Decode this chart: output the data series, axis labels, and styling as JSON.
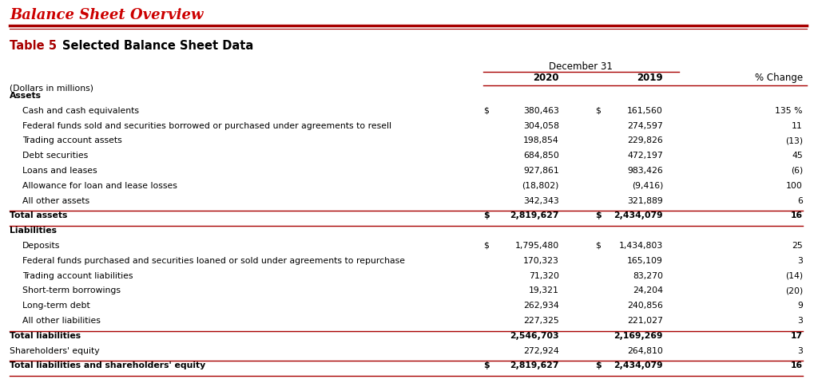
{
  "main_title": "Balance Sheet Overview",
  "table_label": "Table 5",
  "table_title": "Selected Balance Sheet Data",
  "header_group": "December 31",
  "col_headers": [
    "2020",
    "2019",
    "% Change"
  ],
  "dollar_note": "(Dollars in millions)",
  "rows": [
    {
      "label": "Assets",
      "val_2020": "",
      "val_2019": "",
      "pct": "",
      "bold": true,
      "indent": 0,
      "section_header": true,
      "dollar_2020": false,
      "dollar_2019": false,
      "top_border": false,
      "bottom_border": false,
      "double_bottom": false
    },
    {
      "label": "Cash and cash equivalents",
      "val_2020": "380,463",
      "val_2019": "161,560",
      "pct": "135 %",
      "bold": false,
      "indent": 1,
      "section_header": false,
      "dollar_2020": true,
      "dollar_2019": true,
      "top_border": false,
      "bottom_border": false,
      "double_bottom": false
    },
    {
      "label": "Federal funds sold and securities borrowed or purchased under agreements to resell",
      "val_2020": "304,058",
      "val_2019": "274,597",
      "pct": "11",
      "bold": false,
      "indent": 1,
      "section_header": false,
      "dollar_2020": false,
      "dollar_2019": false,
      "top_border": false,
      "bottom_border": false,
      "double_bottom": false
    },
    {
      "label": "Trading account assets",
      "val_2020": "198,854",
      "val_2019": "229,826",
      "pct": "(13)",
      "bold": false,
      "indent": 1,
      "section_header": false,
      "dollar_2020": false,
      "dollar_2019": false,
      "top_border": false,
      "bottom_border": false,
      "double_bottom": false
    },
    {
      "label": "Debt securities",
      "val_2020": "684,850",
      "val_2019": "472,197",
      "pct": "45",
      "bold": false,
      "indent": 1,
      "section_header": false,
      "dollar_2020": false,
      "dollar_2019": false,
      "top_border": false,
      "bottom_border": false,
      "double_bottom": false
    },
    {
      "label": "Loans and leases",
      "val_2020": "927,861",
      "val_2019": "983,426",
      "pct": "(6)",
      "bold": false,
      "indent": 1,
      "section_header": false,
      "dollar_2020": false,
      "dollar_2019": false,
      "top_border": false,
      "bottom_border": false,
      "double_bottom": false
    },
    {
      "label": "Allowance for loan and lease losses",
      "val_2020": "(18,802)",
      "val_2019": "(9,416)",
      "pct": "100",
      "bold": false,
      "indent": 1,
      "section_header": false,
      "dollar_2020": false,
      "dollar_2019": false,
      "top_border": false,
      "bottom_border": false,
      "double_bottom": false
    },
    {
      "label": "All other assets",
      "val_2020": "342,343",
      "val_2019": "321,889",
      "pct": "6",
      "bold": false,
      "indent": 1,
      "section_header": false,
      "dollar_2020": false,
      "dollar_2019": false,
      "top_border": false,
      "bottom_border": false,
      "double_bottom": false
    },
    {
      "label": "Total assets",
      "val_2020": "2,819,627",
      "val_2019": "2,434,079",
      "pct": "16",
      "bold": true,
      "indent": 0,
      "section_header": false,
      "dollar_2020": true,
      "dollar_2019": true,
      "top_border": true,
      "bottom_border": true,
      "double_bottom": false
    },
    {
      "label": "Liabilities",
      "val_2020": "",
      "val_2019": "",
      "pct": "",
      "bold": true,
      "indent": 0,
      "section_header": true,
      "dollar_2020": false,
      "dollar_2019": false,
      "top_border": false,
      "bottom_border": false,
      "double_bottom": false
    },
    {
      "label": "Deposits",
      "val_2020": "1,795,480",
      "val_2019": "1,434,803",
      "pct": "25",
      "bold": false,
      "indent": 1,
      "section_header": false,
      "dollar_2020": true,
      "dollar_2019": true,
      "top_border": false,
      "bottom_border": false,
      "double_bottom": false
    },
    {
      "label": "Federal funds purchased and securities loaned or sold under agreements to repurchase",
      "val_2020": "170,323",
      "val_2019": "165,109",
      "pct": "3",
      "bold": false,
      "indent": 1,
      "section_header": false,
      "dollar_2020": false,
      "dollar_2019": false,
      "top_border": false,
      "bottom_border": false,
      "double_bottom": false
    },
    {
      "label": "Trading account liabilities",
      "val_2020": "71,320",
      "val_2019": "83,270",
      "pct": "(14)",
      "bold": false,
      "indent": 1,
      "section_header": false,
      "dollar_2020": false,
      "dollar_2019": false,
      "top_border": false,
      "bottom_border": false,
      "double_bottom": false
    },
    {
      "label": "Short-term borrowings",
      "val_2020": "19,321",
      "val_2019": "24,204",
      "pct": "(20)",
      "bold": false,
      "indent": 1,
      "section_header": false,
      "dollar_2020": false,
      "dollar_2019": false,
      "top_border": false,
      "bottom_border": false,
      "double_bottom": false
    },
    {
      "label": "Long-term debt",
      "val_2020": "262,934",
      "val_2019": "240,856",
      "pct": "9",
      "bold": false,
      "indent": 1,
      "section_header": false,
      "dollar_2020": false,
      "dollar_2019": false,
      "top_border": false,
      "bottom_border": false,
      "double_bottom": false
    },
    {
      "label": "All other liabilities",
      "val_2020": "227,325",
      "val_2019": "221,027",
      "pct": "3",
      "bold": false,
      "indent": 1,
      "section_header": false,
      "dollar_2020": false,
      "dollar_2019": false,
      "top_border": false,
      "bottom_border": false,
      "double_bottom": false
    },
    {
      "label": "Total liabilities",
      "val_2020": "2,546,703",
      "val_2019": "2,169,269",
      "pct": "17",
      "bold": true,
      "indent": 0,
      "section_header": false,
      "dollar_2020": false,
      "dollar_2019": false,
      "top_border": true,
      "bottom_border": false,
      "double_bottom": false
    },
    {
      "label": "Shareholders' equity",
      "val_2020": "272,924",
      "val_2019": "264,810",
      "pct": "3",
      "bold": false,
      "indent": 0,
      "section_header": false,
      "dollar_2020": false,
      "dollar_2019": false,
      "top_border": false,
      "bottom_border": false,
      "double_bottom": false
    },
    {
      "label": "Total liabilities and shareholders' equity",
      "val_2020": "2,819,627",
      "val_2019": "2,434,079",
      "pct": "16",
      "bold": true,
      "indent": 0,
      "section_header": false,
      "dollar_2020": true,
      "dollar_2019": true,
      "top_border": true,
      "bottom_border": true,
      "double_bottom": false
    }
  ],
  "bg_color": "#ffffff",
  "title_color": "#cc0000",
  "text_color": "#000000",
  "border_color": "#a80000",
  "dark_red": "#a80000"
}
